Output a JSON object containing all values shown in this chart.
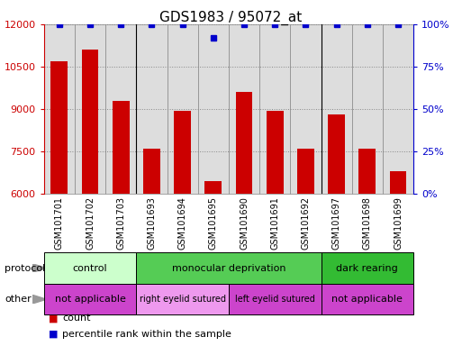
{
  "title": "GDS1983 / 95072_at",
  "samples": [
    "GSM101701",
    "GSM101702",
    "GSM101703",
    "GSM101693",
    "GSM101694",
    "GSM101695",
    "GSM101690",
    "GSM101691",
    "GSM101692",
    "GSM101697",
    "GSM101698",
    "GSM101699"
  ],
  "counts": [
    10700,
    11100,
    9300,
    7600,
    8950,
    6450,
    9600,
    8950,
    7600,
    8800,
    7600,
    6800
  ],
  "percentile_ranks": [
    100,
    100,
    100,
    100,
    100,
    92,
    100,
    100,
    100,
    100,
    100,
    100
  ],
  "ylim_left": [
    6000,
    12000
  ],
  "ylim_right": [
    0,
    100
  ],
  "yticks_left": [
    6000,
    7500,
    9000,
    10500,
    12000
  ],
  "yticks_right": [
    0,
    25,
    50,
    75,
    100
  ],
  "bar_color": "#cc0000",
  "dot_color": "#0000cc",
  "bar_width": 0.55,
  "protocol_groups": [
    {
      "label": "control",
      "start": 0,
      "end": 3,
      "color": "#ccffcc"
    },
    {
      "label": "monocular deprivation",
      "start": 3,
      "end": 9,
      "color": "#55cc55"
    },
    {
      "label": "dark rearing",
      "start": 9,
      "end": 12,
      "color": "#33bb33"
    }
  ],
  "other_groups": [
    {
      "label": "not applicable",
      "start": 0,
      "end": 3,
      "color": "#cc44cc"
    },
    {
      "label": "right eyelid sutured",
      "start": 3,
      "end": 6,
      "color": "#ee99ee"
    },
    {
      "label": "left eyelid sutured",
      "start": 6,
      "end": 9,
      "color": "#cc44cc"
    },
    {
      "label": "not applicable",
      "start": 9,
      "end": 12,
      "color": "#cc44cc"
    }
  ],
  "group_boundaries": [
    3,
    9
  ],
  "legend_count_color": "#cc0000",
  "legend_pct_color": "#0000cc",
  "left_axis_color": "#cc0000",
  "right_axis_color": "#0000cc",
  "background_color": "#ffffff",
  "grid_color": "#888888"
}
